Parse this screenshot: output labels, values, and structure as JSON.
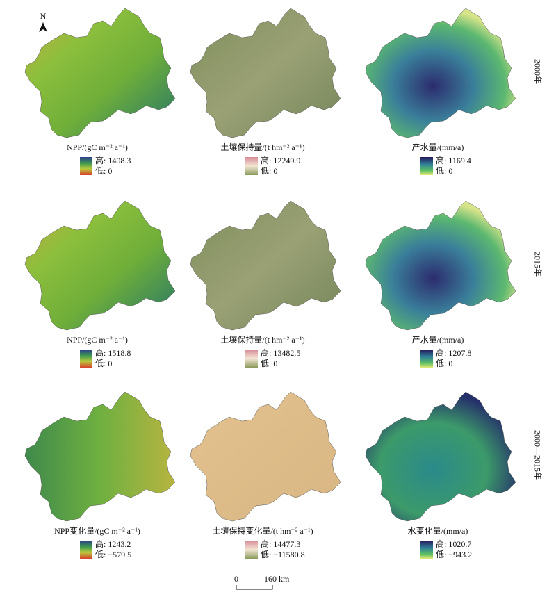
{
  "north": "N",
  "row_labels": [
    "2000年",
    "2015年",
    "2000—2015年"
  ],
  "panels": [
    [
      {
        "title": "NPP/(gC m⁻² a⁻¹)",
        "high": "高: 1408.3",
        "low": "低: 0"
      },
      {
        "title": "土壤保持量/(t hm⁻² a⁻¹)",
        "high": "高: 12249.9",
        "low": "低: 0"
      },
      {
        "title": "产水量/(mm/a)",
        "high": "高: 1169.4",
        "low": "低: 0"
      }
    ],
    [
      {
        "title": "NPP/(gC m⁻² a⁻¹)",
        "high": "高: 1518.8",
        "low": "低: 0"
      },
      {
        "title": "土壤保持量/(t hm⁻² a⁻¹)",
        "high": "高: 13482.5",
        "low": "低: 0"
      },
      {
        "title": "产水量/(mm/a)",
        "high": "高: 1207.8",
        "low": "低: 0"
      }
    ],
    [
      {
        "title": "NPP变化量/(gC m⁻² a⁻¹)",
        "high": "高: 1243.2",
        "low": "低: −579.5"
      },
      {
        "title": "土壤保持变化量/(t hm⁻² a⁻¹)",
        "high": "高: 14477.3",
        "low": "低: −11580.8"
      },
      {
        "title": "水变化量/(mm/a)",
        "high": "高: 1020.7",
        "low": "低: −943.2"
      }
    ]
  ],
  "scale_bar": {
    "start": "0",
    "end": "160 km"
  }
}
